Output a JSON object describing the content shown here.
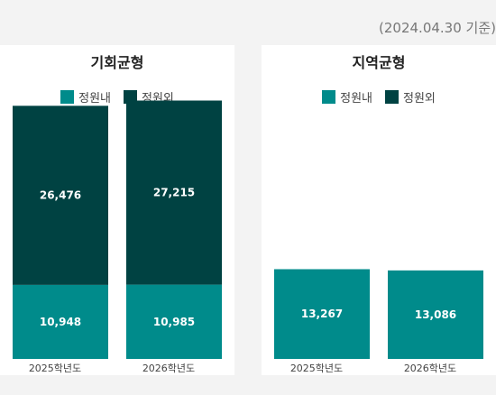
{
  "header": {
    "date_note": "(2024.04.30 기준)"
  },
  "colors": {
    "in_quota": "#008b8b",
    "out_quota": "#004242"
  },
  "legend": {
    "in_quota": "정원내",
    "out_quota": "정원외"
  },
  "chart_data": [
    {
      "type": "bar",
      "stacked": true,
      "title": "기회균형",
      "categories": [
        "2025학년도",
        "2026학년도"
      ],
      "series": [
        {
          "name": "정원내",
          "values": [
            10948,
            10985
          ]
        },
        {
          "name": "정원외",
          "values": [
            26476,
            27215
          ]
        }
      ],
      "ylim": [
        0,
        40000
      ],
      "grid": false,
      "legend_position": "top-center"
    },
    {
      "type": "bar",
      "stacked": true,
      "title": "지역균형",
      "categories": [
        "2025학년도",
        "2026학년도"
      ],
      "series": [
        {
          "name": "정원내",
          "values": [
            13267,
            13086
          ]
        },
        {
          "name": "정원외",
          "values": [
            0,
            0
          ]
        }
      ],
      "ylim": [
        0,
        40000
      ],
      "grid": false,
      "legend_position": "top-center"
    }
  ]
}
